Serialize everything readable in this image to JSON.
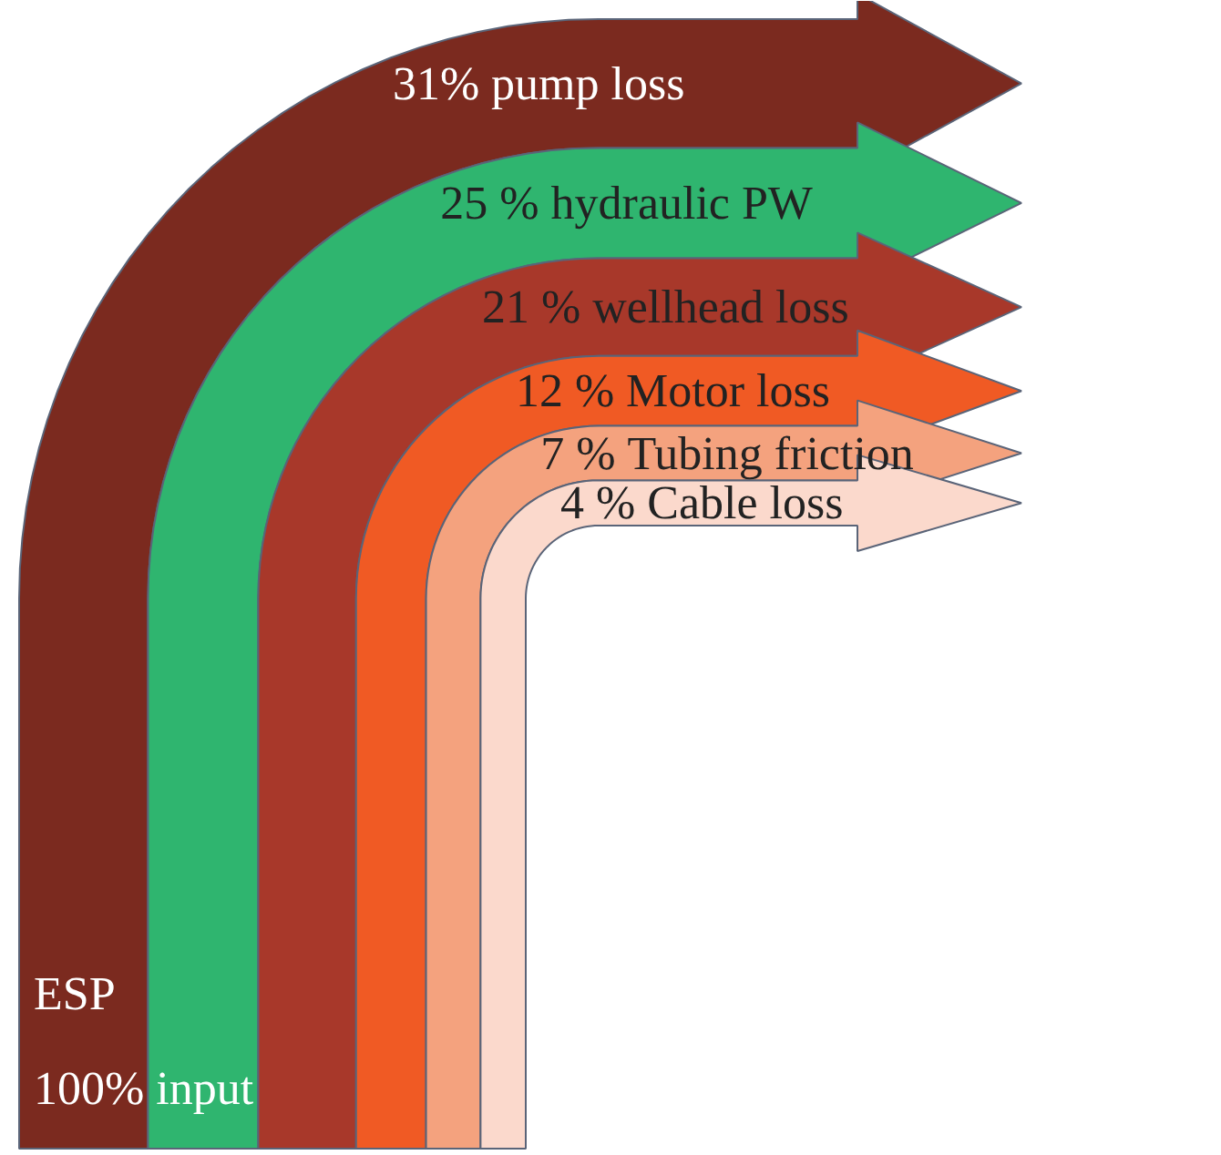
{
  "chart_data": {
    "type": "other",
    "categories": [
      "pump loss",
      "hydraulic PW",
      "wellhead loss",
      "Motor loss",
      "Tubing friction",
      "Cable loss"
    ],
    "values": [
      31,
      25,
      21,
      12,
      7,
      4
    ],
    "value_labels": [
      "31%",
      "25 %",
      "21 %",
      "12 %",
      "7 %",
      "4 %"
    ],
    "colors": [
      "#7b2a1f",
      "#2fb56f",
      "#a8382a",
      "#f05a24",
      "#f4a27e",
      "#fbd9cc"
    ],
    "annotations": [
      "ESP",
      "100% input"
    ]
  }
}
